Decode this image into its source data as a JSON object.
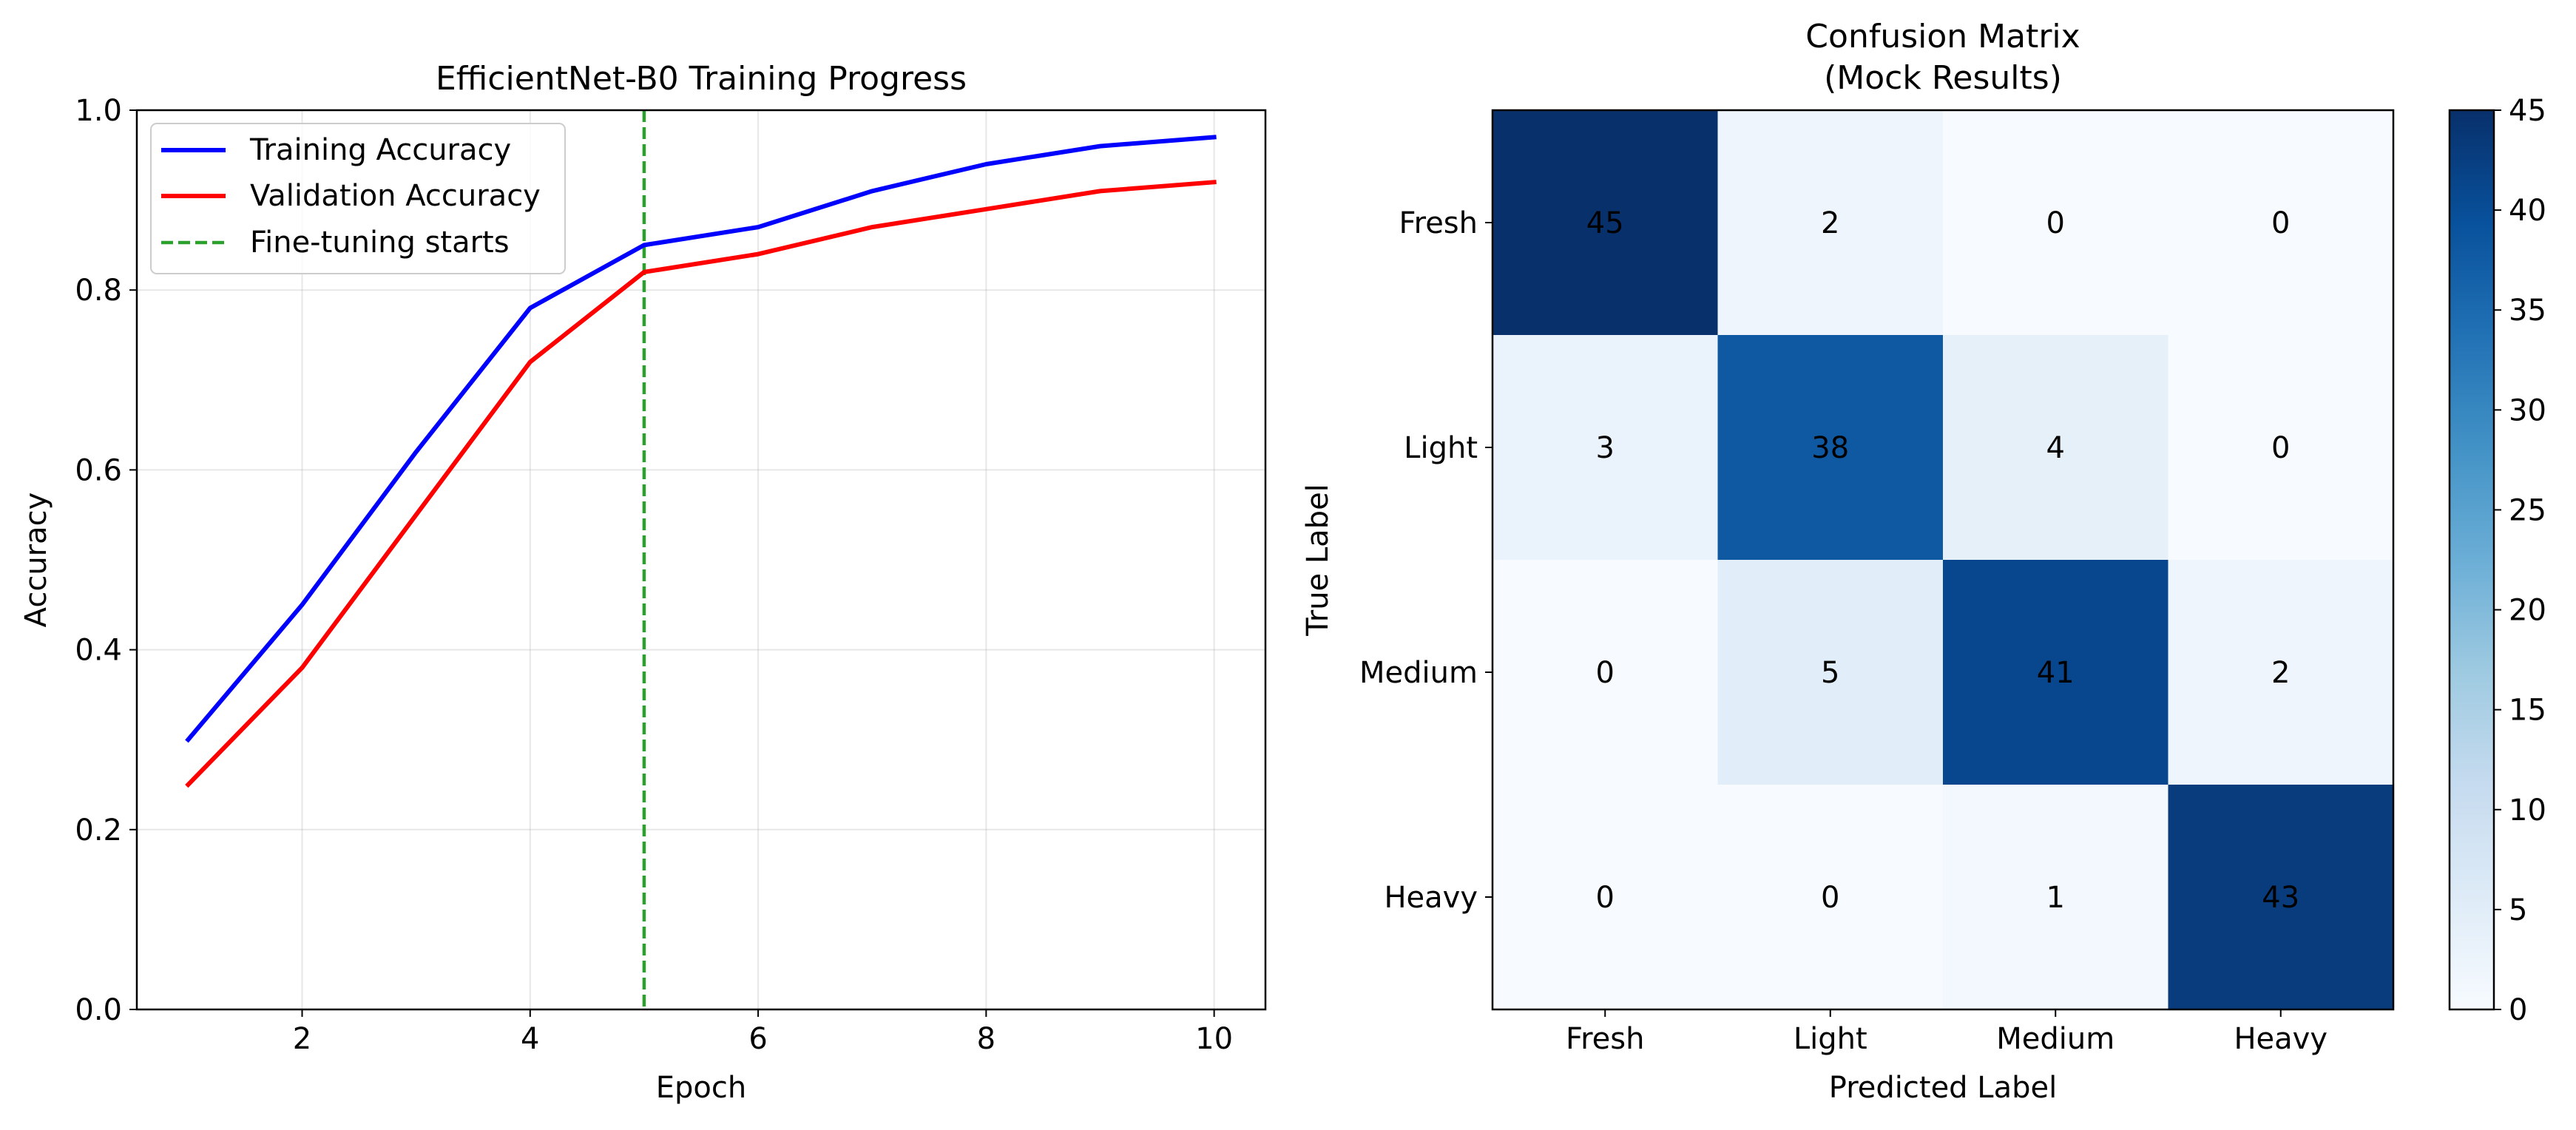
{
  "chart_data": [
    {
      "type": "line",
      "title": "EfficientNet-B0 Training Progress",
      "xlabel": "Epoch",
      "ylabel": "Accuracy",
      "xlim": [
        0.55,
        10.45
      ],
      "ylim": [
        0.0,
        1.0
      ],
      "xticks": [
        2,
        4,
        6,
        8,
        10
      ],
      "yticks": [
        0.0,
        0.2,
        0.4,
        0.6,
        0.8,
        1.0
      ],
      "ytick_labels": [
        "0.0",
        "0.2",
        "0.4",
        "0.6",
        "0.8",
        "1.0"
      ],
      "grid": true,
      "legend_position": "upper-left",
      "x": [
        1,
        2,
        3,
        4,
        5,
        6,
        7,
        8,
        9,
        10
      ],
      "series": [
        {
          "name": "Training Accuracy",
          "color": "#0000ff",
          "style": "solid",
          "values": [
            0.3,
            0.45,
            0.62,
            0.78,
            0.85,
            0.87,
            0.91,
            0.94,
            0.96,
            0.97
          ]
        },
        {
          "name": "Validation Accuracy",
          "color": "#ff0000",
          "style": "solid",
          "values": [
            0.25,
            0.38,
            0.55,
            0.72,
            0.82,
            0.84,
            0.87,
            0.89,
            0.91,
            0.92
          ]
        }
      ],
      "vline": {
        "name": "Fine-tuning starts",
        "x": 5,
        "color": "#2ca02c",
        "style": "dashed"
      }
    },
    {
      "type": "heatmap",
      "title": [
        "Confusion Matrix",
        "(Mock Results)"
      ],
      "xlabel": "Predicted Label",
      "ylabel": "True Label",
      "x_categories": [
        "Fresh",
        "Light",
        "Medium",
        "Heavy"
      ],
      "y_categories": [
        "Fresh",
        "Light",
        "Medium",
        "Heavy"
      ],
      "matrix": [
        [
          45,
          2,
          0,
          0
        ],
        [
          3,
          38,
          4,
          0
        ],
        [
          0,
          5,
          41,
          2
        ],
        [
          0,
          0,
          1,
          43
        ]
      ],
      "colormap": "Blues",
      "colorbar": {
        "min": 0,
        "max": 45,
        "ticks": [
          0,
          5,
          10,
          15,
          20,
          25,
          30,
          35,
          40,
          45
        ]
      }
    }
  ]
}
